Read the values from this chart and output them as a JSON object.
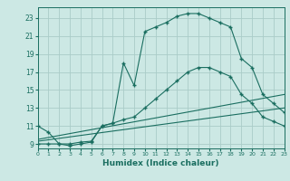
{
  "xlabel": "Humidex (Indice chaleur)",
  "xlim": [
    0,
    23
  ],
  "ylim": [
    8.5,
    24.2
  ],
  "xticks": [
    0,
    1,
    2,
    3,
    4,
    5,
    6,
    7,
    8,
    9,
    10,
    11,
    12,
    13,
    14,
    15,
    16,
    17,
    18,
    19,
    20,
    21,
    22,
    23
  ],
  "yticks": [
    9,
    11,
    13,
    15,
    17,
    19,
    21,
    23
  ],
  "bg_color": "#cce8e4",
  "grid_color": "#aaccc8",
  "line_color": "#1a6e60",
  "lines": [
    {
      "x": [
        0,
        1,
        2,
        3,
        4,
        5,
        6,
        7,
        8,
        9,
        10,
        11,
        12,
        13,
        14,
        15,
        16,
        17,
        18,
        19,
        20,
        21,
        22,
        23
      ],
      "y": [
        11.0,
        10.3,
        9.0,
        8.8,
        9.0,
        9.2,
        11.0,
        11.3,
        18.0,
        15.5,
        21.5,
        22.0,
        22.5,
        23.2,
        23.5,
        23.5,
        23.0,
        22.5,
        22.0,
        18.5,
        17.5,
        14.5,
        13.5,
        12.5
      ],
      "marker": "+"
    },
    {
      "x": [
        0,
        1,
        2,
        3,
        4,
        5,
        6,
        7,
        8,
        9,
        10,
        11,
        12,
        13,
        14,
        15,
        16,
        17,
        18,
        19,
        20,
        21,
        22,
        23
      ],
      "y": [
        9.0,
        9.0,
        9.0,
        9.0,
        9.2,
        9.3,
        11.0,
        11.3,
        11.7,
        12.0,
        13.0,
        14.0,
        15.0,
        16.0,
        17.0,
        17.5,
        17.5,
        17.0,
        16.5,
        14.5,
        13.5,
        12.0,
        11.5,
        11.0
      ],
      "marker": "+"
    },
    {
      "x": [
        0,
        23
      ],
      "y": [
        9.3,
        13.0
      ],
      "marker": null
    },
    {
      "x": [
        0,
        23
      ],
      "y": [
        9.5,
        14.5
      ],
      "marker": null
    }
  ]
}
